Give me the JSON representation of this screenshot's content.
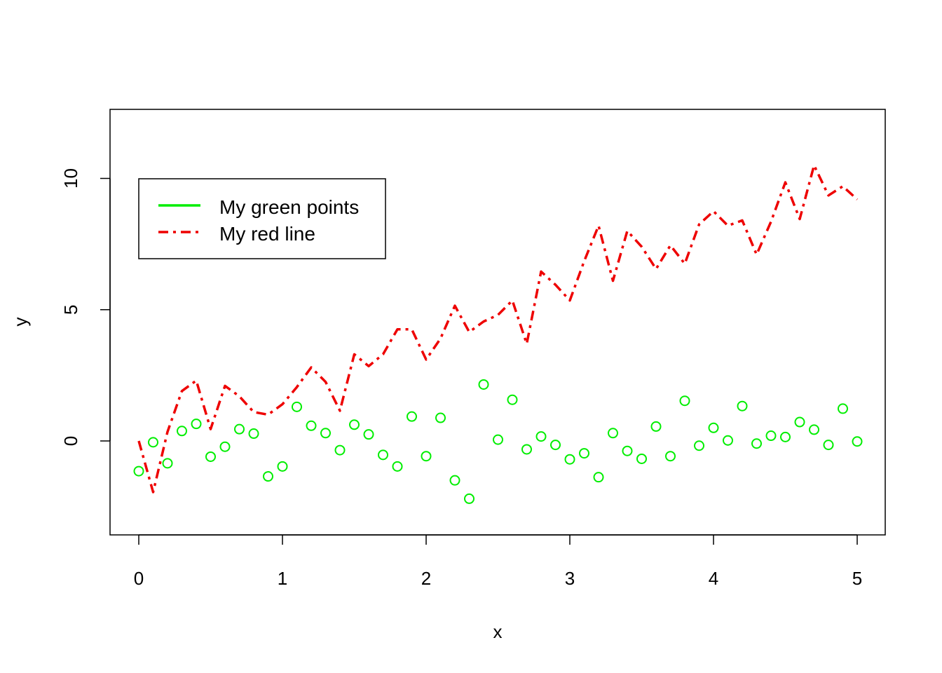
{
  "chart_data": {
    "type": "scatter",
    "xlabel": "x",
    "ylabel": "y",
    "xlim": [
      0,
      5
    ],
    "ylim": [
      -2.2,
      10.5
    ],
    "x_ticks": [
      0,
      1,
      2,
      3,
      4,
      5
    ],
    "y_ticks": [
      0,
      5,
      10
    ],
    "grid": false,
    "legend_position": "top-left",
    "x": [
      0.0,
      0.1,
      0.2,
      0.3,
      0.4,
      0.5,
      0.6,
      0.7,
      0.8,
      0.9,
      1.0,
      1.1,
      1.2,
      1.3,
      1.4,
      1.5,
      1.6,
      1.7,
      1.8,
      1.9,
      2.0,
      2.1,
      2.2,
      2.3,
      2.4,
      2.5,
      2.6,
      2.7,
      2.8,
      2.9,
      3.0,
      3.1,
      3.2,
      3.3,
      3.4,
      3.5,
      3.6,
      3.7,
      3.8,
      3.9,
      4.0,
      4.1,
      4.2,
      4.3,
      4.4,
      4.5,
      4.6,
      4.7,
      4.8,
      4.9,
      5.0
    ],
    "series": [
      {
        "name": "My green points",
        "style": "points",
        "color": "#00ee00",
        "values": [
          -1.15,
          -0.05,
          -0.85,
          0.38,
          0.65,
          -0.6,
          -0.22,
          0.45,
          0.28,
          -1.35,
          -0.97,
          1.3,
          0.58,
          0.3,
          -0.35,
          0.62,
          0.25,
          -0.53,
          -0.97,
          0.93,
          -0.58,
          0.88,
          -1.5,
          -2.2,
          2.15,
          0.05,
          1.57,
          -0.32,
          0.17,
          -0.15,
          -0.7,
          -0.47,
          -1.38,
          0.3,
          -0.38,
          -0.68,
          0.55,
          -0.58,
          1.53,
          -0.18,
          0.5,
          0.02,
          1.33,
          -0.1,
          0.2,
          0.15,
          0.72,
          0.43,
          -0.15,
          1.23,
          -0.02
        ]
      },
      {
        "name": "My red line",
        "style": "dashed-line",
        "color": "#ee0000",
        "values": [
          0.0,
          -1.95,
          0.35,
          1.9,
          2.3,
          0.45,
          2.1,
          1.7,
          1.1,
          1.0,
          1.4,
          2.05,
          2.8,
          2.25,
          1.15,
          3.3,
          2.85,
          3.3,
          4.25,
          4.25,
          3.1,
          3.9,
          5.15,
          4.15,
          4.55,
          4.8,
          5.35,
          3.7,
          6.45,
          5.95,
          5.35,
          6.85,
          8.2,
          6.1,
          8.0,
          7.4,
          6.55,
          7.45,
          6.75,
          8.25,
          8.75,
          8.2,
          8.4,
          7.1,
          8.35,
          9.85,
          8.45,
          10.5,
          9.35,
          9.7,
          9.2
        ]
      }
    ]
  }
}
